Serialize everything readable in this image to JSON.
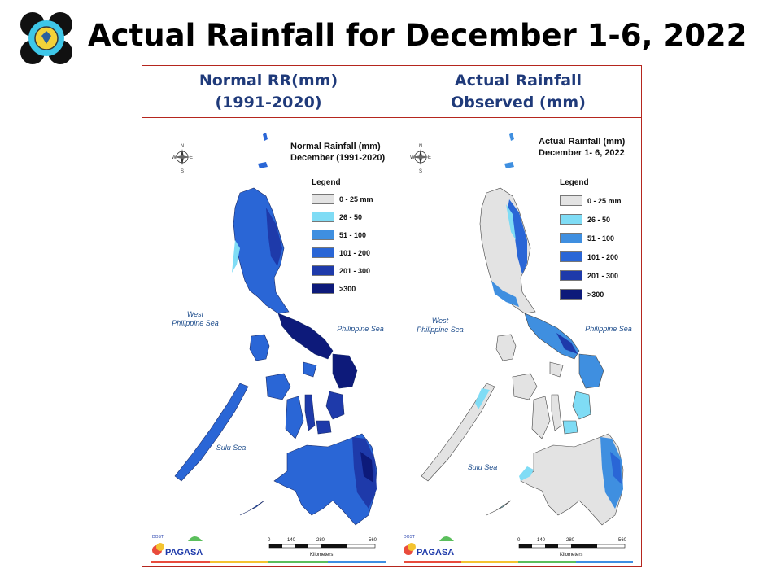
{
  "slide": {
    "title": "Actual Rainfall for December 1-6, 2022"
  },
  "panels": [
    {
      "header_line1": "Normal RR(mm)",
      "header_line2": "(1991-2020)",
      "map_title_line1": "Normal Rainfall (mm)",
      "map_title_line2": "December (1991-2020)"
    },
    {
      "header_line1": "Actual Rainfall",
      "header_line2": "Observed (mm)",
      "map_title_line1": "Actual Rainfall (mm)",
      "map_title_line2": "December 1- 6, 2022"
    }
  ],
  "legend": {
    "title": "Legend",
    "items": [
      {
        "label": "0 - 25 mm",
        "color": "#e3e3e3"
      },
      {
        "label": "26 - 50",
        "color": "#7fdcf5"
      },
      {
        "label": "51 - 100",
        "color": "#3f8fe0"
      },
      {
        "label": "101 - 200",
        "color": "#2a66d6"
      },
      {
        "label": "201 - 300",
        "color": "#1e3aaa"
      },
      {
        "label": ">300",
        "color": "#0d1a7a"
      }
    ]
  },
  "map_labels": {
    "west_sea_line1": "West",
    "west_sea_line2": "Philippine Sea",
    "east_sea": "Philippine Sea",
    "sulu_sea": "Sulu Sea",
    "compass_n": "N",
    "compass_s": "S",
    "compass_e": "E",
    "compass_w": "W",
    "scale_0": "0",
    "scale_140": "140",
    "scale_280": "280",
    "scale_560": "560",
    "scale_unit": "Kilometers",
    "agency_small": "DOST",
    "agency_name": "PAGASA"
  }
}
